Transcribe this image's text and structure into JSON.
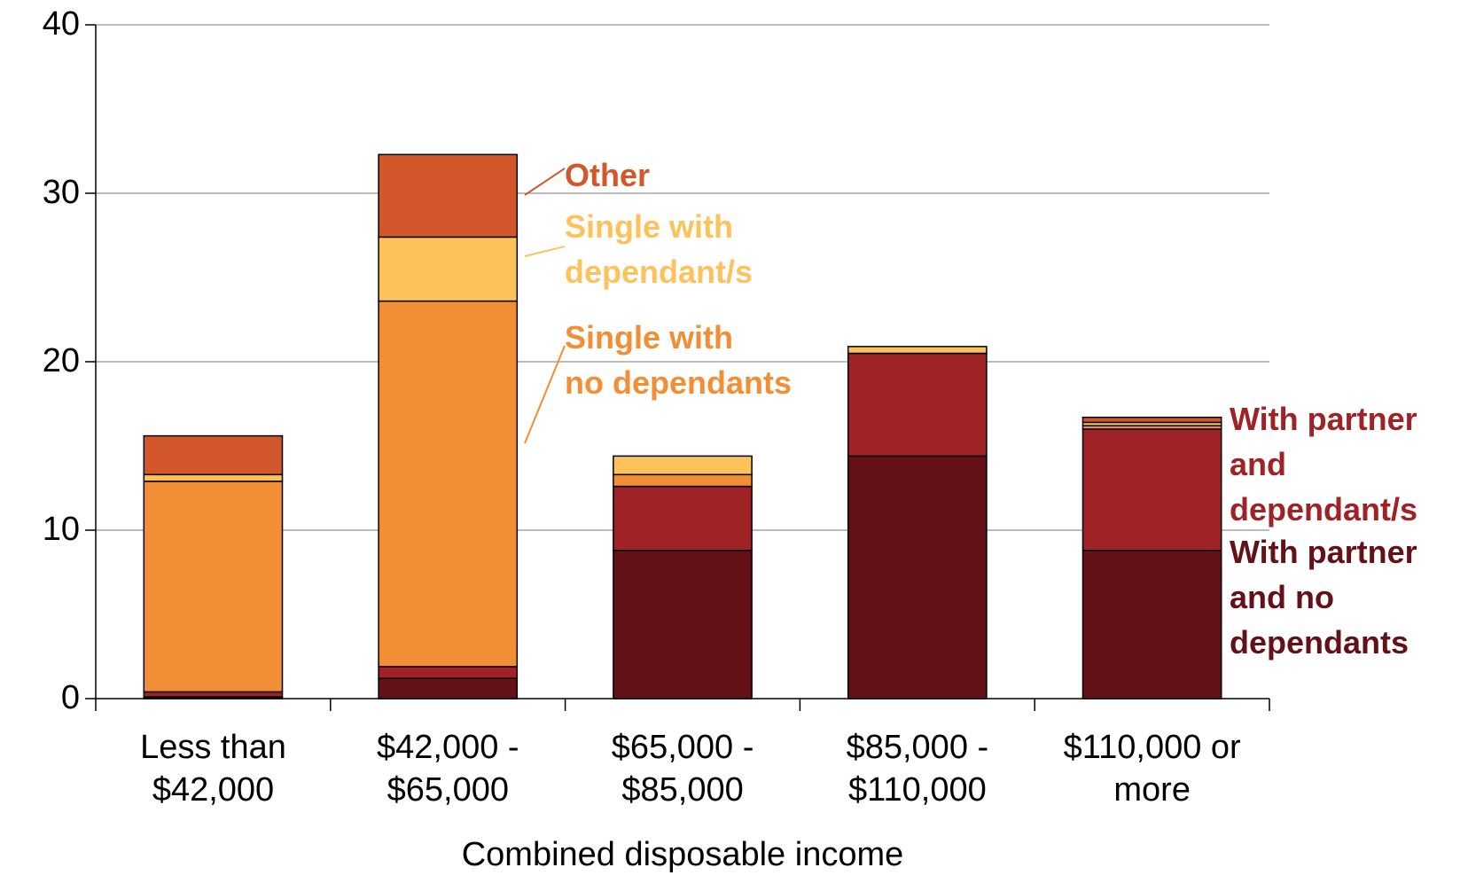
{
  "chart_data": {
    "type": "stacked_bar",
    "x_label": "Combined disposable income",
    "categories": [
      "Less than\n$42,000",
      "$42,000 -\n$65,000",
      "$65,000 -\n$85,000",
      "$85,000 -\n$110,000",
      "$110,000 or\nmore"
    ],
    "series": [
      {
        "name": "With partner\nand no\ndependants",
        "color": "#631117",
        "values": [
          0.1,
          1.2,
          8.8,
          14.4,
          8.8
        ]
      },
      {
        "name": "With partner\nand\ndependant/s",
        "color": "#9e2226",
        "values": [
          0.3,
          0.7,
          3.8,
          6.1,
          7.2
        ]
      },
      {
        "name": "Single with\nno dependants",
        "color": "#f28e35",
        "values": [
          12.5,
          21.7,
          0.7,
          0,
          0.2
        ]
      },
      {
        "name": "Single with\ndependant/s",
        "color": "#fdc25c",
        "values": [
          0.4,
          3.8,
          1.1,
          0.4,
          0.2
        ]
      },
      {
        "name": "Other",
        "color": "#d2572a",
        "values": [
          2.3,
          4.9,
          0,
          0,
          0.3
        ]
      }
    ],
    "ylim": [
      0,
      40
    ],
    "yticks": [
      0,
      10,
      20,
      30,
      40
    ],
    "grid": true
  }
}
